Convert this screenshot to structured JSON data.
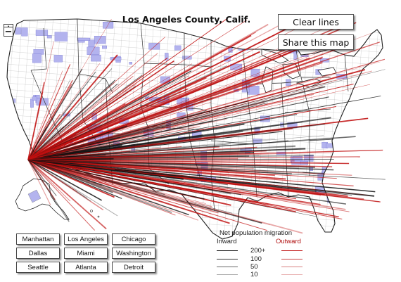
{
  "title": "Los Angeles County, Calif.",
  "zoom": {
    "in_label": "+",
    "out_label": "−"
  },
  "buttons": {
    "clear_label": "Clear lines",
    "share_label": "Share this map"
  },
  "cities": [
    "Manhattan",
    "Los Angeles",
    "Chicago",
    "Dallas",
    "Miami",
    "Washington",
    "Seattle",
    "Atlanta",
    "Detroit"
  ],
  "legend": {
    "title": "Net population migration",
    "inward_label": "Inward",
    "outward_label": "Outward",
    "scale": [
      "200+",
      "100",
      "50",
      "10"
    ]
  },
  "colors": {
    "inward": "#111111",
    "outward": "#c01010",
    "county_fill": "#b3b3ee",
    "county_border": "#333333",
    "land": "#ffffff"
  }
}
